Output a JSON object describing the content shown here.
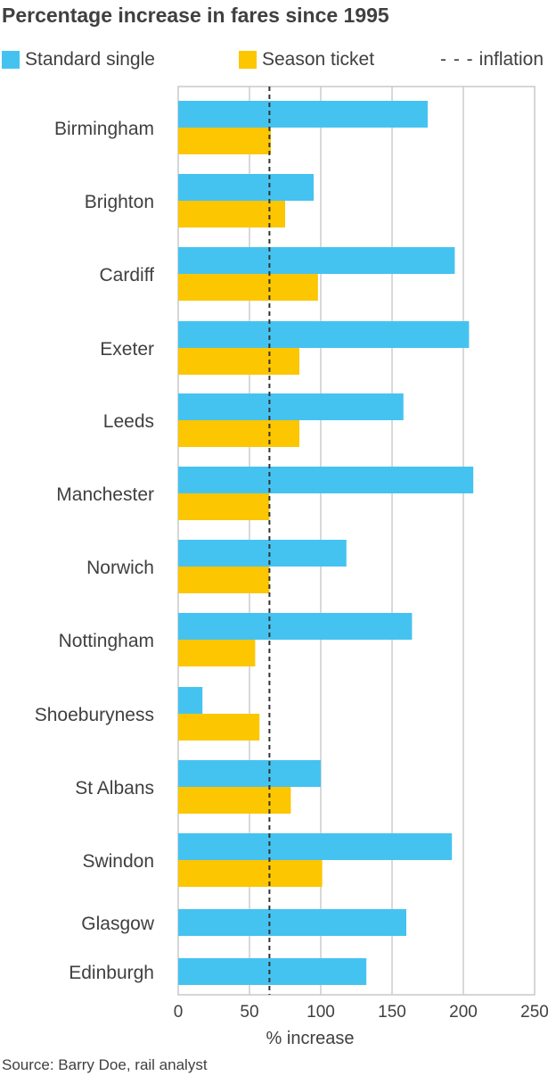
{
  "chart_data": {
    "type": "bar",
    "orientation": "horizontal",
    "title": "Percentage increase in fares since 1995",
    "xlabel": "% increase",
    "xlim": [
      0,
      250
    ],
    "xticks": [
      0,
      50,
      100,
      150,
      200,
      250
    ],
    "grid": true,
    "legend_position": "top",
    "categories": [
      "Birmingham",
      "Brighton",
      "Cardiff",
      "Exeter",
      "Leeds",
      "Manchester",
      "Norwich",
      "Nottingham",
      "Shoeburyness",
      "St Albans",
      "Swindon",
      "Glasgow",
      "Edinburgh"
    ],
    "series": [
      {
        "name": "Standard single",
        "color": "#45c3f0",
        "values": [
          175,
          95,
          194,
          204,
          158,
          207,
          118,
          164,
          17,
          100,
          192,
          160,
          132
        ]
      },
      {
        "name": "Season ticket",
        "color": "#fcc600",
        "values": [
          65,
          75,
          98,
          85,
          85,
          64,
          64,
          54,
          57,
          79,
          101,
          null,
          null
        ]
      }
    ],
    "reference_line": {
      "name": "inflation",
      "value": 64
    },
    "source": "Source: Barry Doe, rail analyst"
  }
}
